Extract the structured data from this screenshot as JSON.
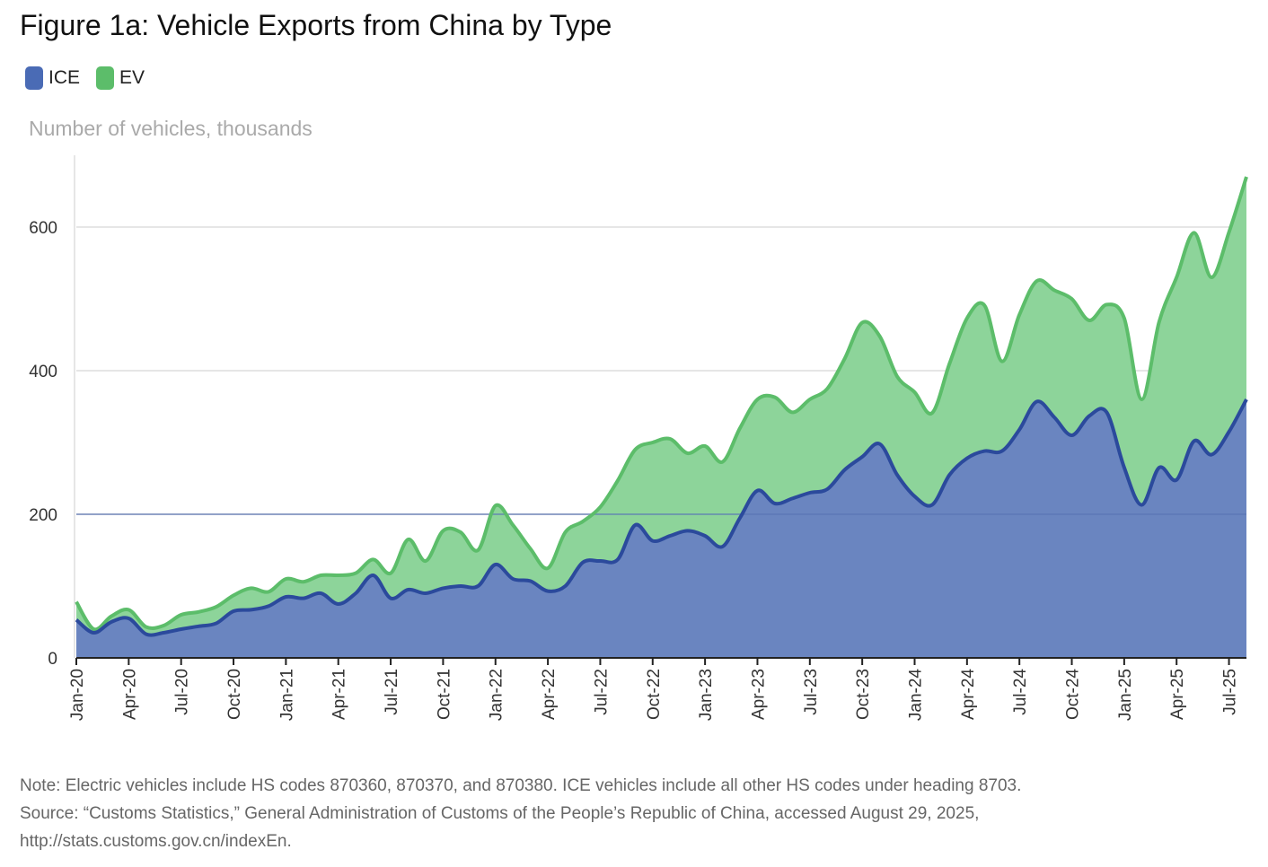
{
  "title": "Figure 1a: Vehicle Exports from China by Type",
  "legend": [
    {
      "label": "ICE",
      "color": "#4a6bb5"
    },
    {
      "label": "EV",
      "color": "#5cbd6a"
    }
  ],
  "unit_label": "Number of vehicles, thousands",
  "footer": {
    "note": "Note: Electric vehicles include HS codes 870360, 870370, and 870380. ICE vehicles include all other HS codes under heading 8703.",
    "source": "Source: “Customs Statistics,” General Administration of Customs of the People’s Republic of China, accessed August 29, 2025,",
    "url": "http://stats.customs.gov.cn/indexEn."
  },
  "chart_data": {
    "type": "area",
    "stacked": true,
    "ylabel": "Number of vehicles, thousands",
    "ylim": [
      0,
      700
    ],
    "yticks": [
      0,
      200,
      400,
      600
    ],
    "grid": true,
    "legend_position": "top-left",
    "x_tick_labels": [
      "Jan-20",
      "Apr-20",
      "Jul-20",
      "Oct-20",
      "Jan-21",
      "Apr-21",
      "Jul-21",
      "Oct-21",
      "Jan-22",
      "Apr-22",
      "Jul-22",
      "Oct-22",
      "Jan-23",
      "Apr-23",
      "Jul-23",
      "Oct-23",
      "Jan-24",
      "Apr-24",
      "Jul-24",
      "Oct-24",
      "Jan-25",
      "Apr-25",
      "Jul-25"
    ],
    "x": [
      "Jan-20",
      "Feb-20",
      "Mar-20",
      "Apr-20",
      "May-20",
      "Jun-20",
      "Jul-20",
      "Aug-20",
      "Sep-20",
      "Oct-20",
      "Nov-20",
      "Dec-20",
      "Jan-21",
      "Feb-21",
      "Mar-21",
      "Apr-21",
      "May-21",
      "Jun-21",
      "Jul-21",
      "Aug-21",
      "Sep-21",
      "Oct-21",
      "Nov-21",
      "Dec-21",
      "Jan-22",
      "Feb-22",
      "Mar-22",
      "Apr-22",
      "May-22",
      "Jun-22",
      "Jul-22",
      "Aug-22",
      "Sep-22",
      "Oct-22",
      "Nov-22",
      "Dec-22",
      "Jan-23",
      "Feb-23",
      "Mar-23",
      "Apr-23",
      "May-23",
      "Jun-23",
      "Jul-23",
      "Aug-23",
      "Sep-23",
      "Oct-23",
      "Nov-23",
      "Dec-23",
      "Jan-24",
      "Feb-24",
      "Mar-24",
      "Apr-24",
      "May-24",
      "Jun-24",
      "Jul-24",
      "Aug-24",
      "Sep-24",
      "Oct-24",
      "Nov-24",
      "Dec-24",
      "Jan-25",
      "Feb-25",
      "Mar-25",
      "Apr-25",
      "May-25",
      "Jun-25",
      "Jul-25",
      "Aug-25"
    ],
    "series": [
      {
        "name": "ICE",
        "color": "#4a6bb5",
        "line": "#2b4a9c",
        "values": [
          53,
          35,
          50,
          55,
          33,
          35,
          40,
          44,
          48,
          65,
          67,
          72,
          85,
          83,
          90,
          75,
          90,
          115,
          83,
          95,
          90,
          97,
          100,
          100,
          130,
          110,
          107,
          93,
          100,
          133,
          135,
          137,
          185,
          163,
          170,
          177,
          170,
          155,
          195,
          233,
          215,
          222,
          230,
          235,
          262,
          280,
          298,
          255,
          225,
          213,
          255,
          278,
          288,
          288,
          318,
          357,
          335,
          310,
          337,
          342,
          265,
          213,
          265,
          248,
          302,
          283,
          315,
          360
        ]
      },
      {
        "name": "EV",
        "color": "#5cbd6a",
        "line": "#5cbd6a",
        "values": [
          25,
          5,
          8,
          12,
          10,
          10,
          20,
          20,
          23,
          22,
          30,
          20,
          25,
          23,
          25,
          40,
          28,
          22,
          35,
          70,
          45,
          80,
          75,
          50,
          82,
          75,
          45,
          32,
          75,
          57,
          75,
          110,
          105,
          137,
          135,
          108,
          125,
          118,
          125,
          127,
          148,
          120,
          130,
          140,
          155,
          187,
          150,
          137,
          145,
          128,
          155,
          195,
          203,
          125,
          160,
          168,
          177,
          190,
          133,
          150,
          208,
          147,
          203,
          282,
          290,
          247,
          278,
          310
        ]
      }
    ]
  }
}
